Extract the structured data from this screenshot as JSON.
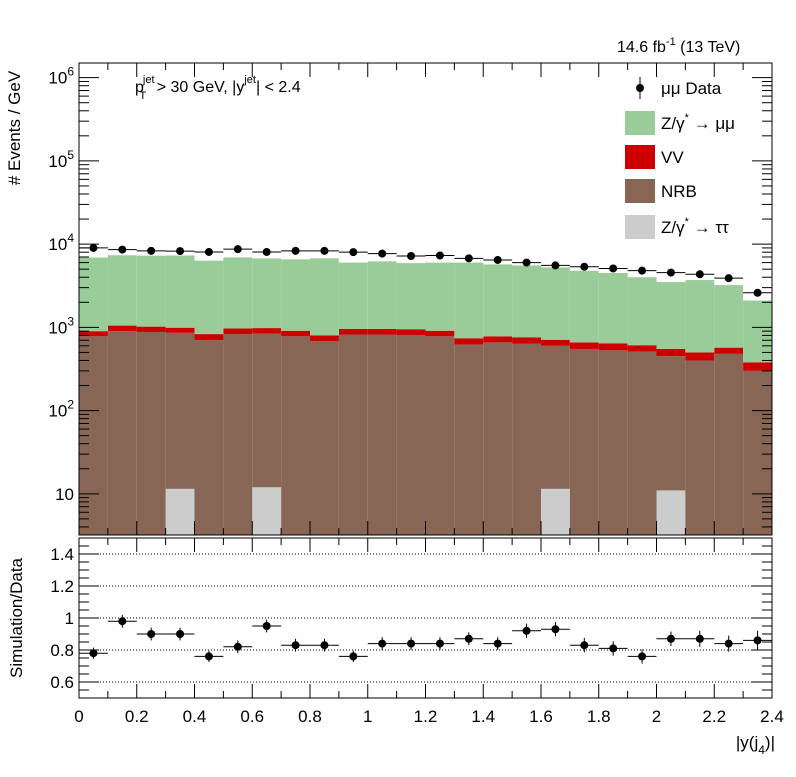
{
  "chart_data": [
    {
      "type": "area",
      "scale": "log",
      "lumi_label": "14.6 fb",
      "lumi_exp": "-1",
      "lumi_tail": " (13 TeV)",
      "cut_pt": "p",
      "cut_pt_sub": "T",
      "cut_jet": "jet",
      "cut_mid": " > 30 GeV,  |y",
      "cut_tail": "| < 2.4",
      "ylabel": "# Events / GeV",
      "ylim": [
        3.2,
        1500000
      ],
      "yticks": [
        {
          "label": "10",
          "exp": "",
          "value": 10
        },
        {
          "label": "10",
          "exp": "2",
          "value": 100
        },
        {
          "label": "10",
          "exp": "3",
          "value": 1000
        },
        {
          "label": "10",
          "exp": "4",
          "value": 10000
        },
        {
          "label": "10",
          "exp": "5",
          "value": 100000
        },
        {
          "label": "10",
          "exp": "6",
          "value": 1000000
        }
      ],
      "bin_edges": [
        0.0,
        0.1,
        0.2,
        0.3,
        0.4,
        0.5,
        0.6,
        0.7,
        0.8,
        0.9,
        1.0,
        1.1,
        1.2,
        1.3,
        1.4,
        1.5,
        1.6,
        1.7,
        1.8,
        1.9,
        2.0,
        2.1,
        2.2,
        2.3,
        2.4
      ],
      "legend": [
        {
          "name": "μμ Data",
          "symbol": "marker"
        },
        {
          "name": "Z/γ",
          "sup": "*",
          "tail": " → μμ",
          "color": "#99cc99"
        },
        {
          "name": "VV",
          "color": "#cc0000"
        },
        {
          "name": "NRB",
          "color": "#886655"
        },
        {
          "name": "Z/γ",
          "sup": "*",
          "tail": " → ττ",
          "color": "#cccccc"
        }
      ],
      "stack": [
        {
          "name": "Z/γ* → ττ",
          "color": "#cccccc",
          "values": [
            0,
            0,
            0,
            11.5,
            0,
            0,
            12,
            0,
            0,
            0,
            0,
            0,
            0,
            0,
            0,
            0,
            11.5,
            0,
            0,
            0,
            11,
            0,
            0,
            0
          ]
        },
        {
          "name": "NRB",
          "color": "#886655",
          "values": [
            780,
            900,
            880,
            860,
            700,
            830,
            840,
            780,
            680,
            820,
            820,
            810,
            780,
            620,
            660,
            640,
            600,
            550,
            530,
            510,
            450,
            400,
            480,
            300
          ]
        },
        {
          "name": "VV",
          "color": "#cc0000",
          "values": [
            120,
            150,
            140,
            130,
            130,
            140,
            140,
            130,
            120,
            140,
            140,
            140,
            130,
            120,
            120,
            120,
            110,
            110,
            110,
            100,
            100,
            100,
            90,
            80
          ]
        },
        {
          "name": "Z/γ* → μμ",
          "color": "#99cc99",
          "values": [
            6000,
            6300,
            6250,
            6300,
            5500,
            5950,
            5750,
            5650,
            5950,
            5040,
            5250,
            4960,
            5090,
            5260,
            4920,
            4780,
            4540,
            4120,
            3860,
            3390,
            2950,
            3200,
            2650,
            1720
          ]
        }
      ],
      "data": [
        9000,
        8600,
        8300,
        8250,
        8050,
        8700,
        8050,
        8300,
        8300,
        8000,
        7700,
        7200,
        7300,
        6750,
        6450,
        6000,
        5550,
        5350,
        5100,
        4800,
        4550,
        4350,
        3900,
        2600
      ]
    },
    {
      "type": "scatter",
      "ylabel": "Simulation/Data",
      "xlabel": "|y(j",
      "xlabel_sub": "4",
      "xlabel_tail": ")|",
      "xlim": [
        0,
        2.4
      ],
      "ylim": [
        0.5,
        1.5
      ],
      "xticks": [
        "0",
        "0.2",
        "0.4",
        "0.6",
        "0.8",
        "1",
        "1.2",
        "1.4",
        "1.6",
        "1.8",
        "2",
        "2.2",
        "2.4"
      ],
      "yticks": [
        "0.6",
        "0.8",
        "1",
        "1.2",
        "1.4"
      ],
      "values": [
        0.78,
        0.98,
        0.9,
        0.9,
        0.76,
        0.82,
        0.95,
        0.83,
        0.83,
        0.76,
        0.84,
        0.84,
        0.84,
        0.87,
        0.84,
        0.92,
        0.93,
        0.83,
        0.81,
        0.76,
        0.87,
        0.87,
        0.84,
        0.86
      ],
      "errors": [
        0.035,
        0.04,
        0.04,
        0.04,
        0.035,
        0.04,
        0.04,
        0.04,
        0.04,
        0.035,
        0.04,
        0.04,
        0.04,
        0.04,
        0.04,
        0.045,
        0.045,
        0.045,
        0.045,
        0.045,
        0.045,
        0.05,
        0.05,
        0.06
      ]
    }
  ]
}
